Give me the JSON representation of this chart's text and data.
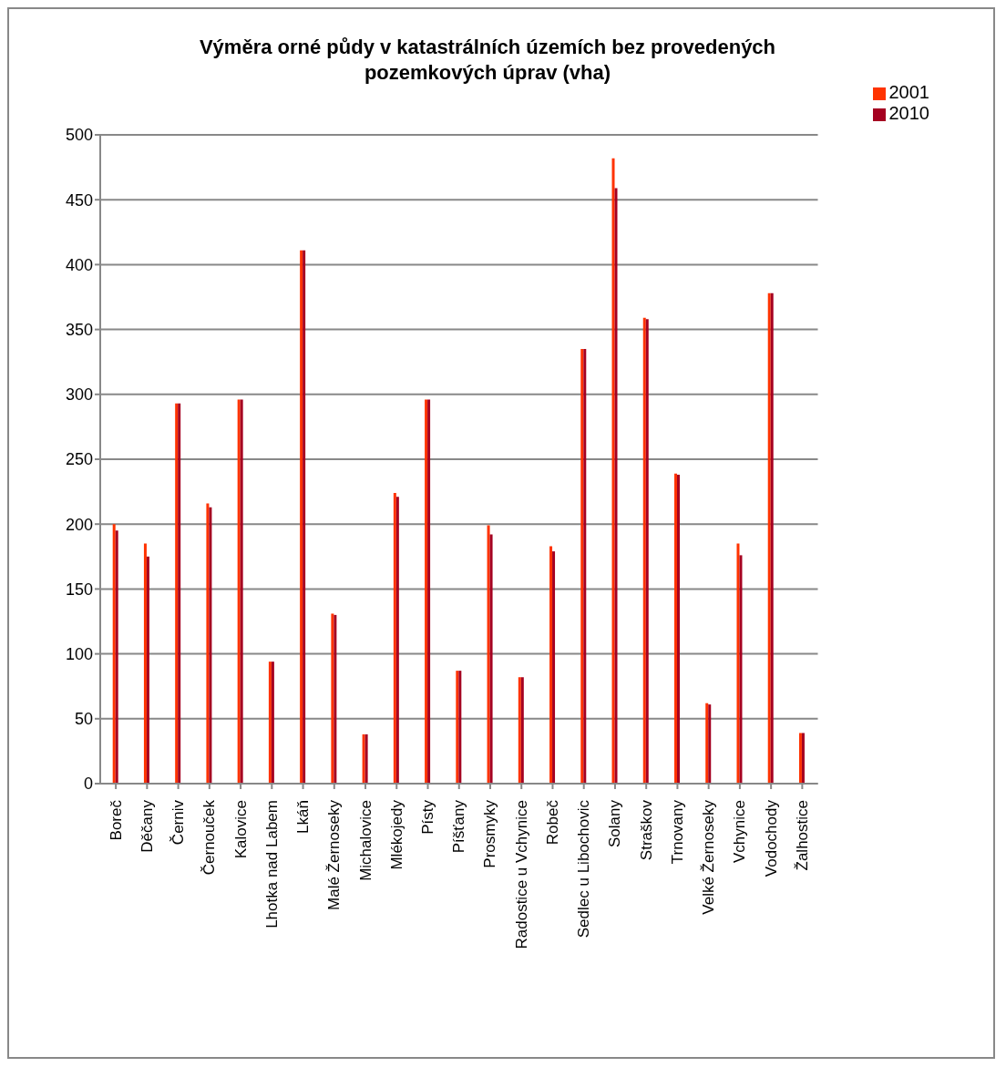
{
  "chart_data": {
    "type": "bar",
    "title": "Výměra orné půdy v katastrálních územích bez provedených pozemkových úprav (vha)",
    "categories": [
      "Boreč",
      "Děčany",
      "Černiv",
      "Černouček",
      "Kalovice",
      "Lhotka nad Labem",
      "Lkáň",
      "Malé Žernoseky",
      "Michalovice",
      "Mlékojedy",
      "Písty",
      "Píšťany",
      "Prosmyky",
      "Radostice u Vchynice",
      "Robeč",
      "Sedlec u Libochovic",
      "Solany",
      "Straškov",
      "Trnovany",
      "Velké Žernoseky",
      "Vchynice",
      "Vodochody",
      "Žalhostice"
    ],
    "series": [
      {
        "name": "2001",
        "color": "#ff3300",
        "values": [
          200,
          185,
          293,
          216,
          296,
          94,
          411,
          131,
          38,
          224,
          296,
          87,
          199,
          82,
          183,
          335,
          482,
          359,
          239,
          62,
          185,
          378,
          39
        ]
      },
      {
        "name": "2010",
        "color": "#a50021",
        "values": [
          195,
          175,
          293,
          213,
          296,
          94,
          411,
          130,
          38,
          221,
          296,
          87,
          192,
          82,
          179,
          335,
          459,
          358,
          238,
          61,
          176,
          378,
          39
        ]
      }
    ],
    "ylim": [
      0,
      500
    ],
    "yticks": [
      0,
      50,
      100,
      150,
      200,
      250,
      300,
      350,
      400,
      450,
      500
    ],
    "grid": "y",
    "legend": "top right"
  }
}
